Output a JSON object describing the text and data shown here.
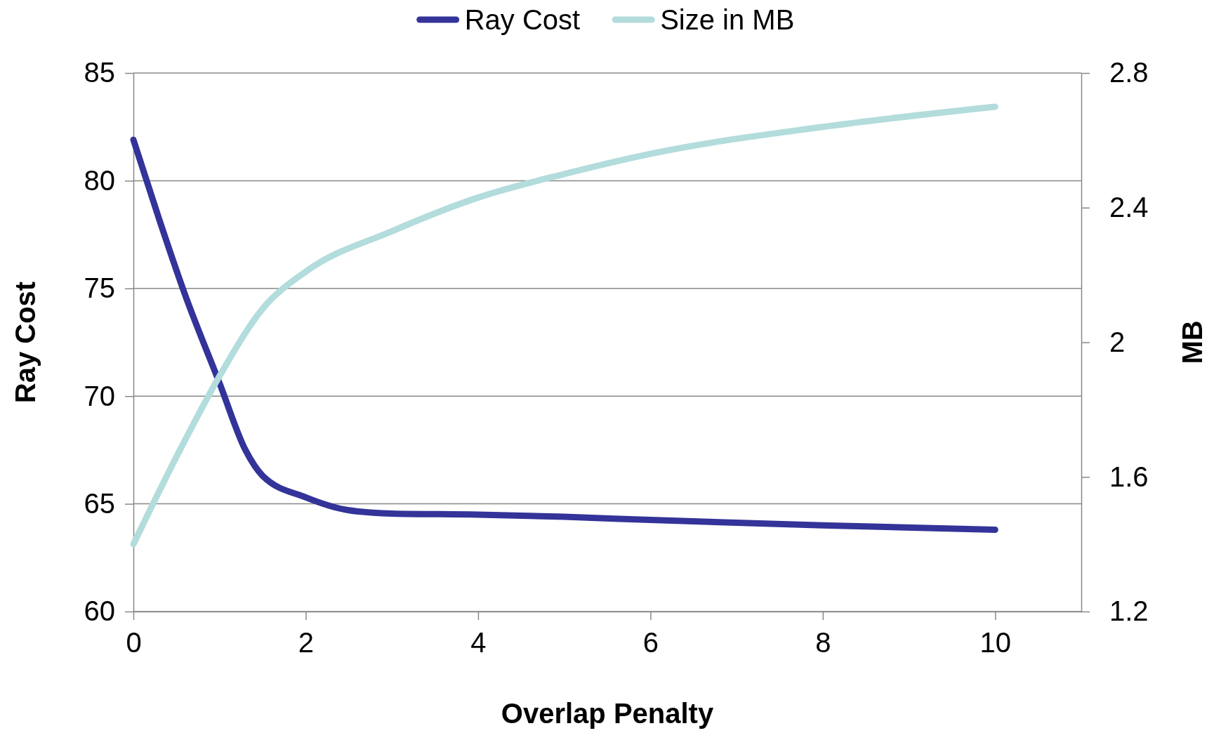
{
  "chart_data": {
    "type": "line",
    "xlabel": "Overlap Penalty",
    "ylabel": "Ray Cost",
    "y2label": "MB",
    "x": [
      0,
      0.3,
      0.6,
      1,
      1.3,
      1.5,
      2,
      2.5,
      3,
      4,
      5,
      6,
      8,
      10
    ],
    "series": [
      {
        "name": "Ray Cost",
        "color": "#333399",
        "values": [
          81.9,
          78.2,
          74.7,
          70.6,
          67.5,
          66.3,
          65.3,
          64.7,
          64.55,
          64.5,
          64.4,
          64.25,
          64.0,
          63.8
        ]
      },
      {
        "name": "Size in MB",
        "color": "#b3dcdc",
        "axis": "y2",
        "x": [
          0,
          0.5,
          1,
          1.5,
          2,
          3,
          4,
          5,
          6,
          8,
          10
        ],
        "values": [
          1.4,
          1.66,
          1.9,
          2.1,
          2.21,
          2.33,
          2.43,
          2.5,
          2.56,
          2.64,
          2.7
        ]
      }
    ],
    "xlim": [
      0,
      11
    ],
    "xticks": [
      0,
      2,
      4,
      6,
      8,
      10
    ],
    "ylim": [
      60,
      85
    ],
    "yticks": [
      60,
      65,
      70,
      75,
      80,
      85
    ],
    "y2lim": [
      1.2,
      2.8
    ],
    "y2ticks": [
      1.2,
      1.6,
      2,
      2.4,
      2.8
    ],
    "grid": "y",
    "legend": "top",
    "marker": "none",
    "line_style": "solid"
  }
}
